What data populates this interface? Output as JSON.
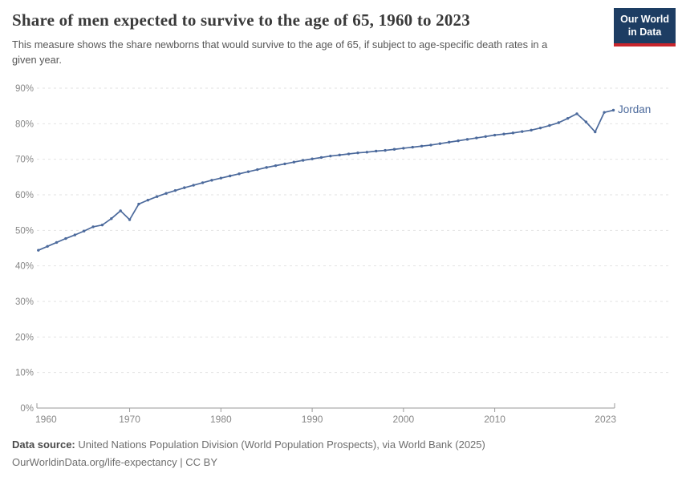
{
  "header": {
    "title": "Share of men expected to survive to the age of 65, 1960 to 2023",
    "subtitle": "This measure shows the share newborns that would survive to the age of 65, if subject to age-specific death rates in a given year.",
    "logo_line1": "Our World",
    "logo_line2": "in Data"
  },
  "chart_data": {
    "type": "line",
    "title": "Share of men expected to survive to the age of 65, 1960 to 2023",
    "xlabel": "",
    "ylabel": "",
    "ylim": [
      0,
      90
    ],
    "yticks": [
      0,
      10,
      20,
      30,
      40,
      50,
      60,
      70,
      80,
      90
    ],
    "ytick_suffix": "%",
    "xticks": [
      1960,
      1970,
      1980,
      1990,
      2000,
      2010,
      2023
    ],
    "grid": "horizontal-dashed",
    "legend_position": "end-of-line-label",
    "x": [
      1960,
      1961,
      1962,
      1963,
      1964,
      1965,
      1966,
      1967,
      1968,
      1969,
      1970,
      1971,
      1972,
      1973,
      1974,
      1975,
      1976,
      1977,
      1978,
      1979,
      1980,
      1981,
      1982,
      1983,
      1984,
      1985,
      1986,
      1987,
      1988,
      1989,
      1990,
      1991,
      1992,
      1993,
      1994,
      1995,
      1996,
      1997,
      1998,
      1999,
      2000,
      2001,
      2002,
      2003,
      2004,
      2005,
      2006,
      2007,
      2008,
      2009,
      2010,
      2011,
      2012,
      2013,
      2014,
      2015,
      2016,
      2017,
      2018,
      2019,
      2020,
      2021,
      2022,
      2023
    ],
    "series": [
      {
        "name": "Jordan",
        "color": "#4c6a9c",
        "values": [
          44.4,
          45.5,
          46.6,
          47.7,
          48.7,
          49.8,
          51.0,
          51.5,
          53.3,
          55.5,
          53.0,
          57.4,
          58.5,
          59.5,
          60.4,
          61.2,
          62.0,
          62.7,
          63.4,
          64.1,
          64.7,
          65.3,
          65.9,
          66.5,
          67.1,
          67.7,
          68.2,
          68.7,
          69.2,
          69.7,
          70.1,
          70.5,
          70.9,
          71.2,
          71.5,
          71.8,
          72.0,
          72.3,
          72.5,
          72.8,
          73.1,
          73.4,
          73.7,
          74.0,
          74.4,
          74.8,
          75.2,
          75.6,
          76.0,
          76.4,
          76.8,
          77.1,
          77.4,
          77.8,
          78.2,
          78.8,
          79.5,
          80.3,
          81.5,
          82.8,
          80.5,
          77.7,
          83.2,
          83.8
        ]
      }
    ]
  },
  "footer": {
    "datasource_label": "Data source:",
    "datasource_text": " United Nations Population Division (World Population Prospects), via World Bank (2025)",
    "license_line": "OurWorldinData.org/life-expectancy | CC BY"
  },
  "colors": {
    "line": "#4c6a9c",
    "gridline": "#e2e2e2",
    "axis": "#9a9a9a",
    "tick_label": "#878787",
    "logo_navy": "#1d3d63",
    "logo_red": "#c8252c"
  }
}
